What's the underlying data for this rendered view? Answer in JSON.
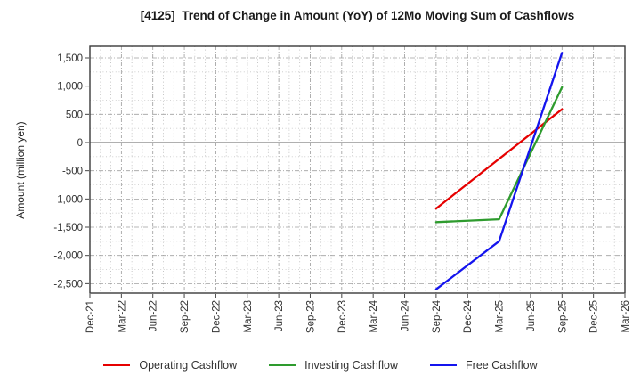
{
  "page": {
    "title": "[4125]  Trend of Change in Amount (YoY) of 12Mo Moving Sum of Cashflows"
  },
  "chart_data": {
    "type": "line",
    "title": "[4125]  Trend of Change in Amount (YoY) of 12Mo Moving Sum of Cashflows",
    "xlabel": "",
    "ylabel": "Amount (million yen)",
    "x_tick_labels": [
      "Dec-21",
      "Mar-22",
      "Jun-22",
      "Sep-22",
      "Dec-22",
      "Mar-23",
      "Jun-23",
      "Sep-23",
      "Dec-23",
      "Mar-24",
      "Jun-24",
      "Sep-24",
      "Dec-24",
      "Mar-25",
      "Jun-25",
      "Sep-25",
      "Dec-25",
      "Mar-26"
    ],
    "x_month_count": 51,
    "x_tick_every_months": 3,
    "ylim": [
      -2668,
      1705
    ],
    "y_major_ticks": [
      1500,
      1000,
      500,
      0,
      -500,
      -1000,
      -1500,
      -2000,
      -2500
    ],
    "y_minor_step": 250,
    "grid": "dotted major+minor, solid zero line",
    "legend_position": "bottom",
    "x_points": [
      "Sep-24",
      "Mar-25",
      "Sep-25"
    ],
    "x_point_month_index": [
      33,
      39,
      45
    ],
    "series": [
      {
        "name": "Operating Cashflow",
        "color": "#e60000",
        "values": [
          -1170,
          -290,
          590
        ]
      },
      {
        "name": "Investing Cashflow",
        "color": "#2e9b2e",
        "values": [
          -1410,
          -1360,
          980
        ]
      },
      {
        "name": "Free Cashflow",
        "color": "#1414ee",
        "values": [
          -2600,
          -1750,
          1590
        ]
      }
    ],
    "line_width": 2.3
  }
}
